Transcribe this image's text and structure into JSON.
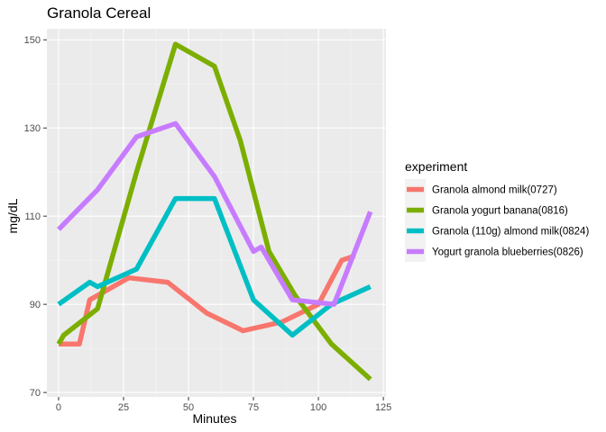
{
  "chart_data": {
    "type": "line",
    "title": "Granola Cereal",
    "xlabel": "Minutes",
    "ylabel": "mg/dL",
    "xlim": [
      -4.5,
      126
    ],
    "ylim": [
      69,
      152.5
    ],
    "xticks": [
      0,
      25,
      50,
      75,
      100,
      125
    ],
    "yticks": [
      70,
      90,
      110,
      130,
      150
    ],
    "grid": true,
    "legend": {
      "title": "experiment",
      "position": "right"
    },
    "series": [
      {
        "name": "Granola almond milk(0727)",
        "color": "#F8766D",
        "x": [
          0,
          8,
          12,
          27,
          42,
          57,
          71,
          86,
          100,
          109,
          114
        ],
        "y": [
          81,
          81,
          91,
          96,
          95,
          88,
          84,
          86,
          90,
          100,
          101
        ]
      },
      {
        "name": "Granola yogurt banana(0816)",
        "color": "#7CAE00",
        "x": [
          0,
          2,
          15,
          30,
          45,
          60,
          70,
          81,
          91,
          105,
          120
        ],
        "y": [
          81,
          83,
          89,
          120,
          149,
          144,
          127,
          102,
          92,
          81,
          73
        ]
      },
      {
        "name": "Granola (110g) almond milk(0824)",
        "color": "#00BFC4",
        "x": [
          0,
          12,
          15,
          30,
          45,
          60,
          75,
          90,
          105,
          120
        ],
        "y": [
          90,
          95,
          94,
          98,
          114,
          114,
          91,
          83,
          90,
          94
        ]
      },
      {
        "name": "Yogurt granola blueberries(0826)",
        "color": "#C77CFF",
        "x": [
          0,
          15,
          30,
          45,
          60,
          75,
          78,
          90,
          106,
          120
        ],
        "y": [
          107,
          116,
          128,
          131,
          119,
          102,
          103,
          91,
          90,
          111
        ]
      }
    ]
  },
  "style": {
    "panel_bg": "#EBEBEB",
    "grid_major": "#FFFFFF",
    "grid_minor": "#F5F5F5",
    "tick_color": "#333333"
  }
}
